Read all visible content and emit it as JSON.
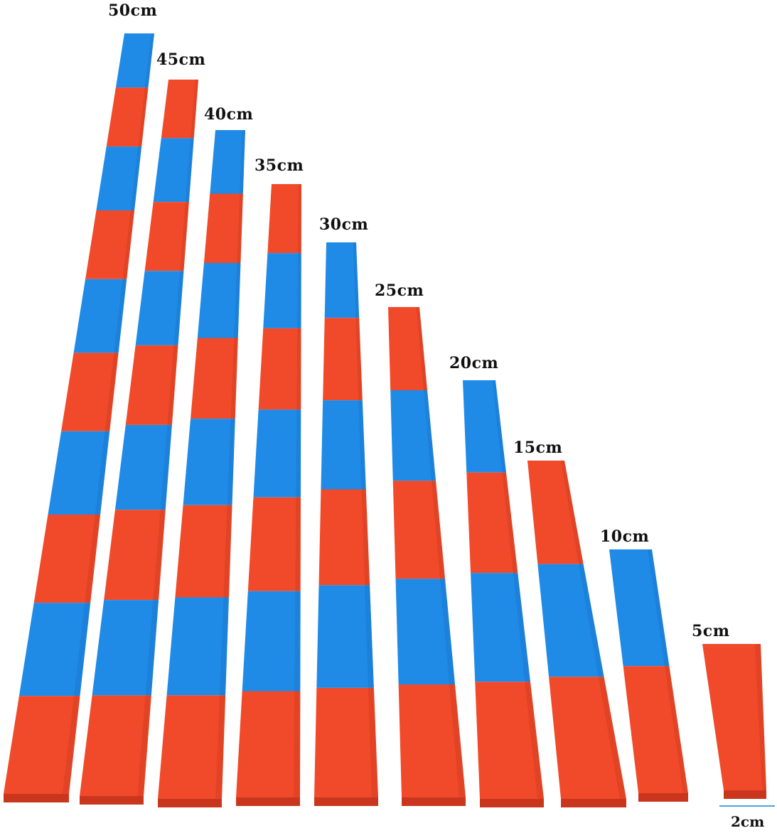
{
  "colors": {
    "red": "#f04a2a",
    "red_dark": "#c9361d",
    "blue": "#1f8be6",
    "blue_dark": "#1670c2",
    "background": "#ffffff",
    "label": "#111111"
  },
  "rods": [
    {
      "label": "50cm",
      "length_cm": 50,
      "segments": [
        "blue",
        "red",
        "blue",
        "red",
        "blue",
        "red",
        "blue",
        "red",
        "blue",
        "red"
      ]
    },
    {
      "label": "45cm",
      "length_cm": 45,
      "segments": [
        "red",
        "blue",
        "red",
        "blue",
        "red",
        "blue",
        "red",
        "blue",
        "red"
      ]
    },
    {
      "label": "40cm",
      "length_cm": 40,
      "segments": [
        "blue",
        "red",
        "blue",
        "red",
        "blue",
        "red",
        "blue",
        "red"
      ]
    },
    {
      "label": "35cm",
      "length_cm": 35,
      "segments": [
        "red",
        "blue",
        "red",
        "blue",
        "red",
        "blue",
        "red"
      ]
    },
    {
      "label": "30cm",
      "length_cm": 30,
      "segments": [
        "blue",
        "red",
        "blue",
        "red",
        "blue",
        "red"
      ]
    },
    {
      "label": "25cm",
      "length_cm": 25,
      "segments": [
        "red",
        "blue",
        "red",
        "blue",
        "red"
      ]
    },
    {
      "label": "20cm",
      "length_cm": 20,
      "segments": [
        "blue",
        "red",
        "blue",
        "red"
      ]
    },
    {
      "label": "15cm",
      "length_cm": 15,
      "segments": [
        "red",
        "blue",
        "red"
      ]
    },
    {
      "label": "10cm",
      "length_cm": 10,
      "segments": [
        "blue",
        "red"
      ]
    },
    {
      "label": "5cm",
      "length_cm": 5,
      "segments": [
        "red"
      ]
    }
  ],
  "width_label": "2cm"
}
